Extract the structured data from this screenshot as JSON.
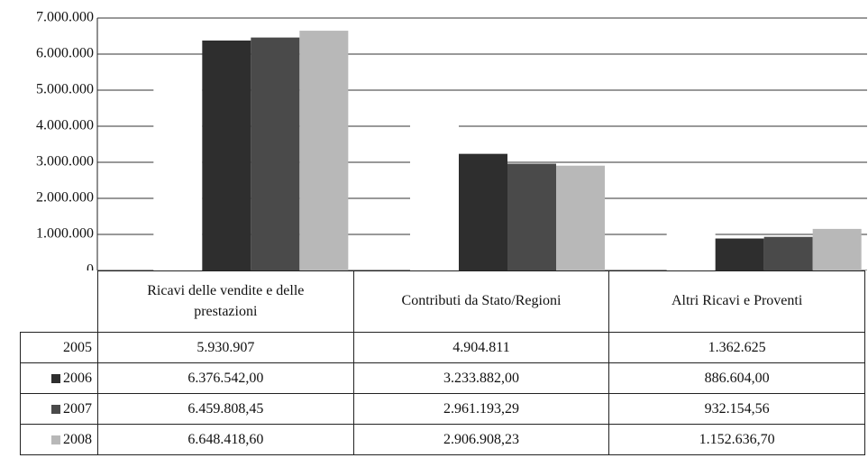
{
  "chart_data": {
    "type": "bar",
    "categories": [
      "Ricavi delle vendite e delle prestazioni",
      "Contributi da Stato/Regioni",
      "Altri Ricavi e Proventi"
    ],
    "series": [
      {
        "name": "2005",
        "color": "#ffffff",
        "values": [
          5930907,
          4904811,
          1362625
        ],
        "value_labels": [
          "5.930.907",
          "4.904.811",
          "1.362.625"
        ]
      },
      {
        "name": "2006",
        "color": "#2e2e2e",
        "values": [
          6376542.0,
          3233882.0,
          886604.0
        ],
        "value_labels": [
          "6.376.542,00",
          "3.233.882,00",
          "886.604,00"
        ]
      },
      {
        "name": "2007",
        "color": "#4a4a4a",
        "values": [
          6459808.45,
          2961193.29,
          932154.56
        ],
        "value_labels": [
          "6.459.808,45",
          "2.961.193,29",
          "932.154,56"
        ]
      },
      {
        "name": "2008",
        "color": "#b8b8b8",
        "values": [
          6648418.6,
          2906908.23,
          1152636.7
        ],
        "value_labels": [
          "6.648.418,60",
          "2.906.908,23",
          "1.152.636,70"
        ]
      }
    ],
    "ylim": [
      0,
      7000000
    ],
    "yticks": [
      0,
      {
        "value": 1000000,
        "label": "1.000.000"
      },
      {
        "value": 2000000,
        "label": "2.000.000"
      },
      {
        "value": 3000000,
        "label": "3.000.000"
      },
      {
        "value": 4000000,
        "label": "4.000.000"
      },
      {
        "value": 5000000,
        "label": "5.000.000"
      },
      {
        "value": 6000000,
        "label": "6.000.000"
      },
      {
        "value": 7000000,
        "label": "7.000.000"
      }
    ],
    "grid": true
  }
}
